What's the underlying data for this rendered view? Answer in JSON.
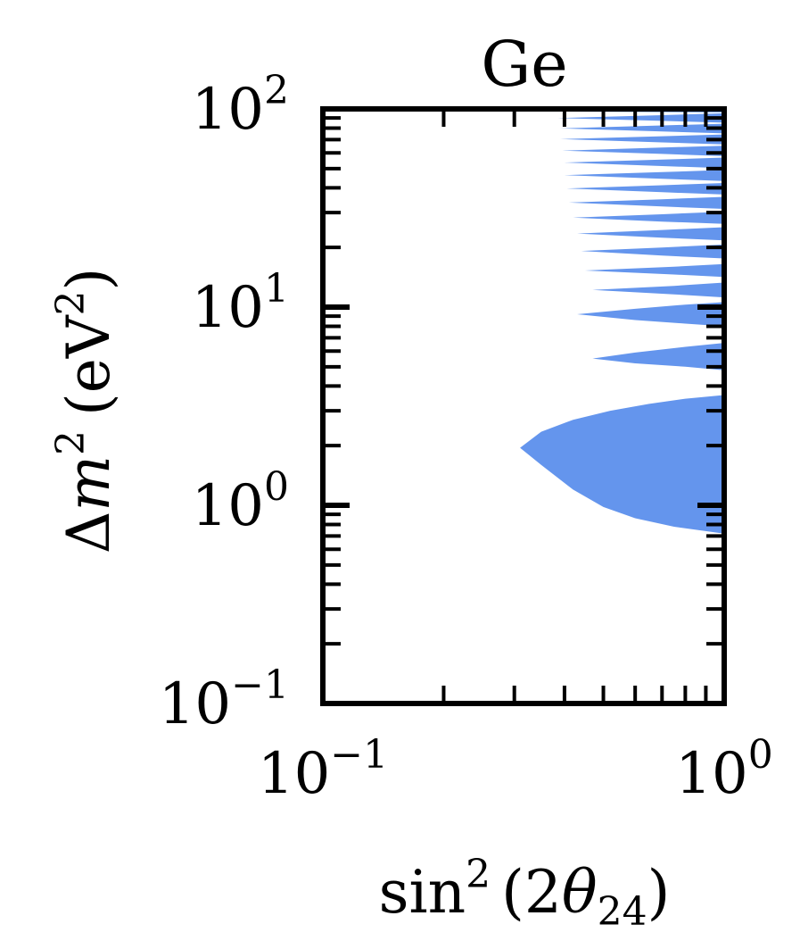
{
  "chart_data": {
    "type": "area",
    "title": "Ge",
    "xlabel": {
      "base": "sin",
      "sup": "2",
      "arg_open": "(2",
      "theta": "θ",
      "sub": "24",
      "arg_close": ")"
    },
    "ylabel": {
      "delta": "Δ",
      "m": "m",
      "sup": "2",
      "unit_open": "(eV",
      "unit_sup": "2",
      "unit_close": ")"
    },
    "xscale": "log",
    "yscale": "log",
    "xlim": [
      0.1,
      1.0
    ],
    "ylim": [
      0.1,
      100
    ],
    "x_ticks": [
      {
        "value": 0.1,
        "base": "10",
        "exp": "−1"
      },
      {
        "value": 1.0,
        "base": "10",
        "exp": "0"
      }
    ],
    "y_ticks": [
      {
        "value": 0.1,
        "base": "10",
        "exp": "−1"
      },
      {
        "value": 1,
        "base": "10",
        "exp": "0"
      },
      {
        "value": 10,
        "base": "10",
        "exp": "1"
      },
      {
        "value": 100,
        "base": "10",
        "exp": "2"
      }
    ],
    "grid": false,
    "color": "#6495ed",
    "region": {
      "description_of_shape": "allowed region right of contour, oscillating lobes",
      "contour": [
        [
          1.0,
          0.72
        ],
        [
          0.75,
          0.78
        ],
        [
          0.6,
          0.86
        ],
        [
          0.5,
          0.98
        ],
        [
          0.42,
          1.2
        ],
        [
          0.35,
          1.6
        ],
        [
          0.31,
          1.95
        ],
        [
          0.35,
          2.35
        ],
        [
          0.42,
          2.7
        ],
        [
          0.52,
          3.0
        ],
        [
          0.65,
          3.25
        ],
        [
          0.8,
          3.45
        ],
        [
          1.0,
          3.6
        ],
        [
          1.0,
          4.8
        ],
        [
          0.8,
          5.0
        ],
        [
          0.6,
          5.2
        ],
        [
          0.47,
          5.5
        ],
        [
          0.6,
          5.9
        ],
        [
          0.8,
          6.3
        ],
        [
          1.0,
          6.6
        ],
        [
          1.0,
          8.0
        ],
        [
          0.8,
          8.25
        ],
        [
          0.6,
          8.6
        ],
        [
          0.43,
          9.2
        ],
        [
          0.6,
          9.8
        ],
        [
          0.8,
          10.3
        ],
        [
          1.0,
          10.6
        ],
        [
          1.0,
          11.2
        ],
        [
          0.75,
          11.6
        ],
        [
          0.47,
          12.2
        ],
        [
          0.75,
          12.8
        ],
        [
          1.0,
          13.3
        ],
        [
          1.0,
          14.2
        ],
        [
          0.75,
          14.6
        ],
        [
          0.45,
          15.3
        ],
        [
          0.75,
          16.0
        ],
        [
          1.0,
          16.5
        ],
        [
          1.0,
          17.6
        ],
        [
          0.7,
          18.2
        ],
        [
          0.44,
          19.2
        ],
        [
          0.7,
          20.0
        ],
        [
          1.0,
          20.7
        ],
        [
          1.0,
          21.7
        ],
        [
          0.7,
          22.4
        ],
        [
          0.43,
          23.5
        ],
        [
          0.7,
          24.5
        ],
        [
          1.0,
          25.3
        ],
        [
          1.0,
          26.3
        ],
        [
          0.7,
          27.0
        ],
        [
          0.42,
          28.3
        ],
        [
          0.7,
          29.4
        ],
        [
          1.0,
          30.3
        ],
        [
          1.0,
          31.3
        ],
        [
          0.7,
          32.2
        ],
        [
          0.41,
          33.7
        ],
        [
          0.7,
          35.0
        ],
        [
          1.0,
          36.0
        ],
        [
          1.0,
          37.0
        ],
        [
          0.7,
          38.0
        ],
        [
          0.405,
          39.7
        ],
        [
          0.7,
          41.2
        ],
        [
          1.0,
          42.3
        ],
        [
          1.0,
          43.3
        ],
        [
          0.7,
          44.4
        ],
        [
          0.4,
          46.3
        ],
        [
          0.7,
          48.0
        ],
        [
          1.0,
          49.2
        ],
        [
          1.0,
          50.2
        ],
        [
          0.7,
          51.5
        ],
        [
          0.4,
          53.6
        ],
        [
          0.7,
          55.5
        ],
        [
          1.0,
          56.8
        ],
        [
          1.0,
          57.8
        ],
        [
          0.7,
          59.3
        ],
        [
          0.395,
          61.6
        ],
        [
          0.7,
          63.8
        ],
        [
          1.0,
          65.2
        ],
        [
          1.0,
          66.2
        ],
        [
          0.7,
          67.8
        ],
        [
          0.39,
          70.4
        ],
        [
          0.7,
          72.8
        ],
        [
          1.0,
          74.3
        ],
        [
          1.0,
          75.3
        ],
        [
          0.7,
          77.0
        ],
        [
          0.39,
          79.8
        ],
        [
          0.7,
          82.5
        ],
        [
          1.0,
          84.2
        ],
        [
          1.0,
          85.2
        ],
        [
          0.7,
          87.0
        ],
        [
          0.385,
          90.0
        ],
        [
          0.7,
          93.0
        ],
        [
          1.0,
          95.0
        ],
        [
          1.0,
          100.0
        ],
        [
          0.385,
          100.0
        ],
        [
          0.385,
          97.0
        ],
        [
          1.0,
          96.0
        ]
      ]
    }
  }
}
